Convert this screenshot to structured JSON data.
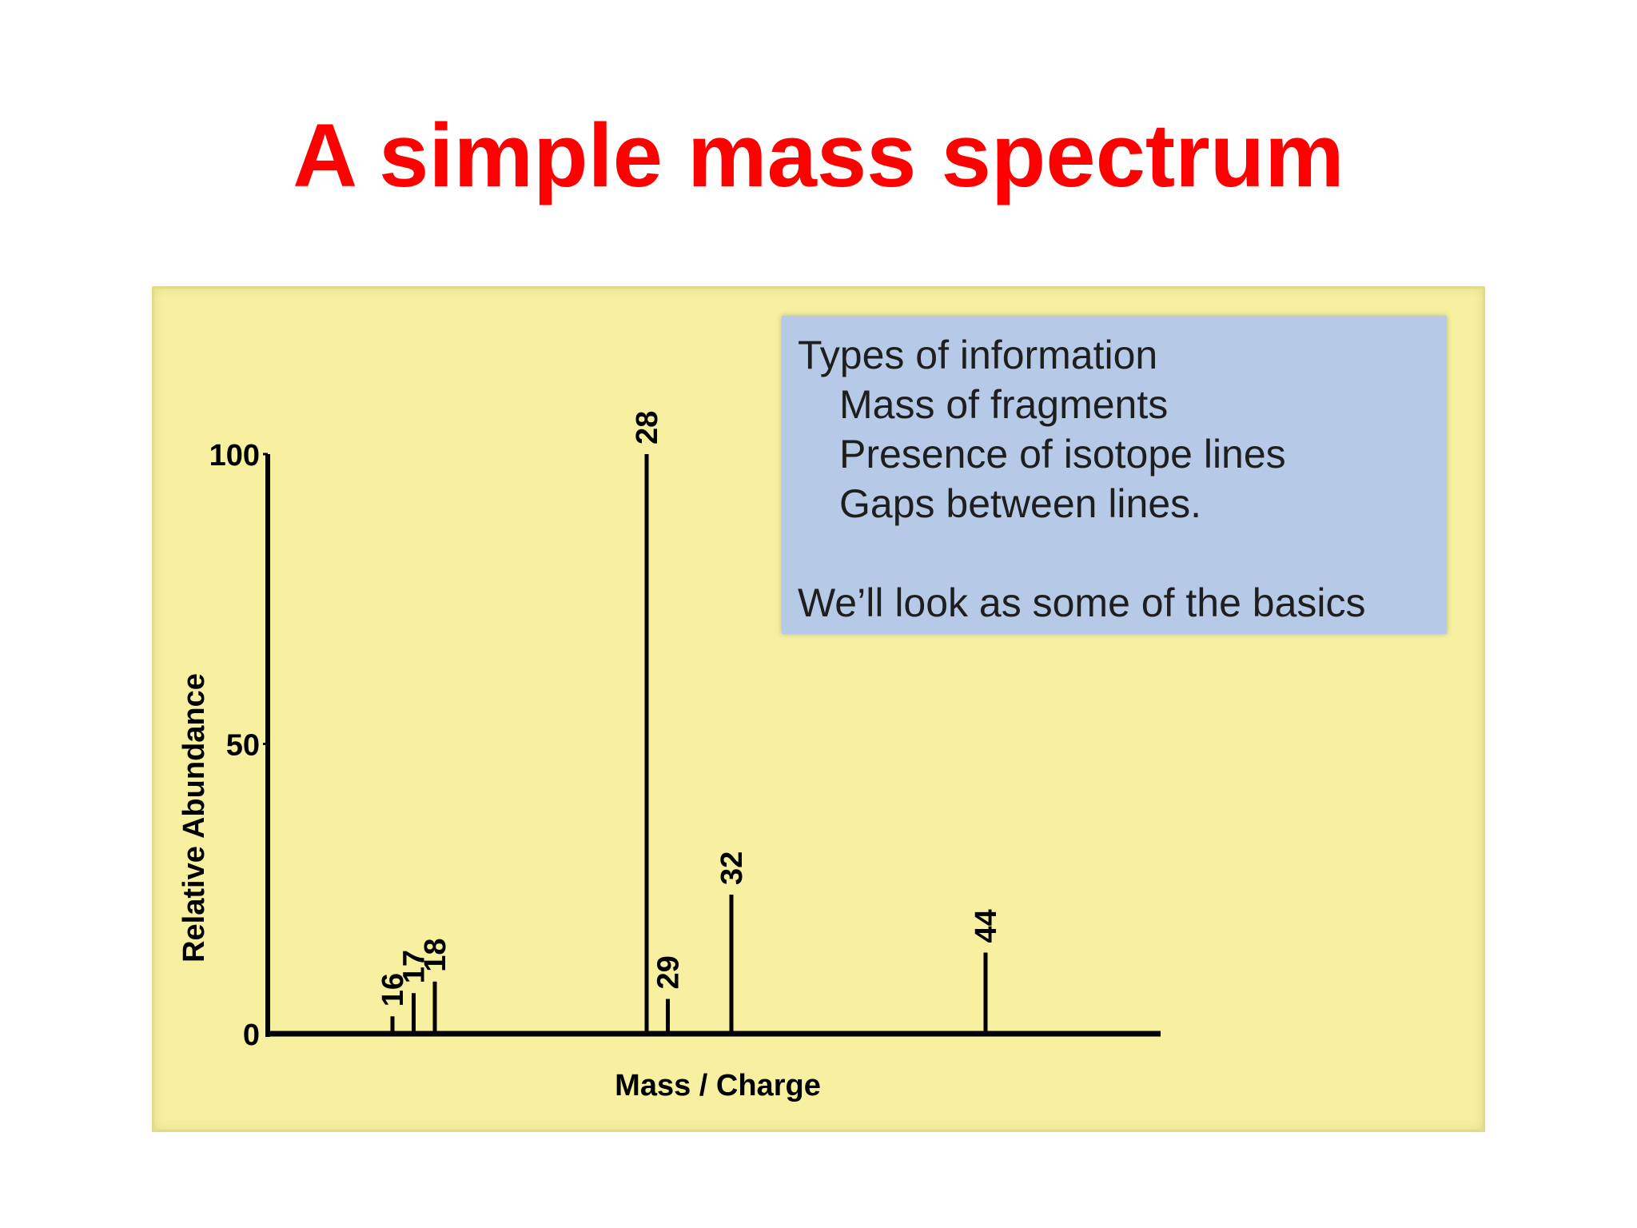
{
  "slide": {
    "title": "A simple mass spectrum"
  },
  "info_box": {
    "heading": "Types of information",
    "items": [
      "Mass of fragments",
      "Presence of isotope lines",
      "Gaps between lines."
    ],
    "footer": "We’ll look as some of the basics"
  },
  "colors": {
    "title": "#ff0000",
    "panel_background": "#f6f0a0",
    "info_box_background": "#b6c9e7",
    "lines": "#000000"
  },
  "chart_data": {
    "type": "bar",
    "xlabel": "Mass / Charge",
    "ylabel": "Relative Abundance",
    "ylim": [
      0,
      100
    ],
    "yticks": [
      0,
      50,
      100
    ],
    "xlim": [
      10,
      52
    ],
    "grid": false,
    "peaks": [
      {
        "mz": 16,
        "label": "16",
        "abundance": 3
      },
      {
        "mz": 17,
        "label": "17",
        "abundance": 7
      },
      {
        "mz": 18,
        "label": "18",
        "abundance": 9
      },
      {
        "mz": 28,
        "label": "28",
        "abundance": 100
      },
      {
        "mz": 29,
        "label": "29",
        "abundance": 6
      },
      {
        "mz": 32,
        "label": "32",
        "abundance": 24
      },
      {
        "mz": 44,
        "label": "44",
        "abundance": 14
      }
    ]
  }
}
